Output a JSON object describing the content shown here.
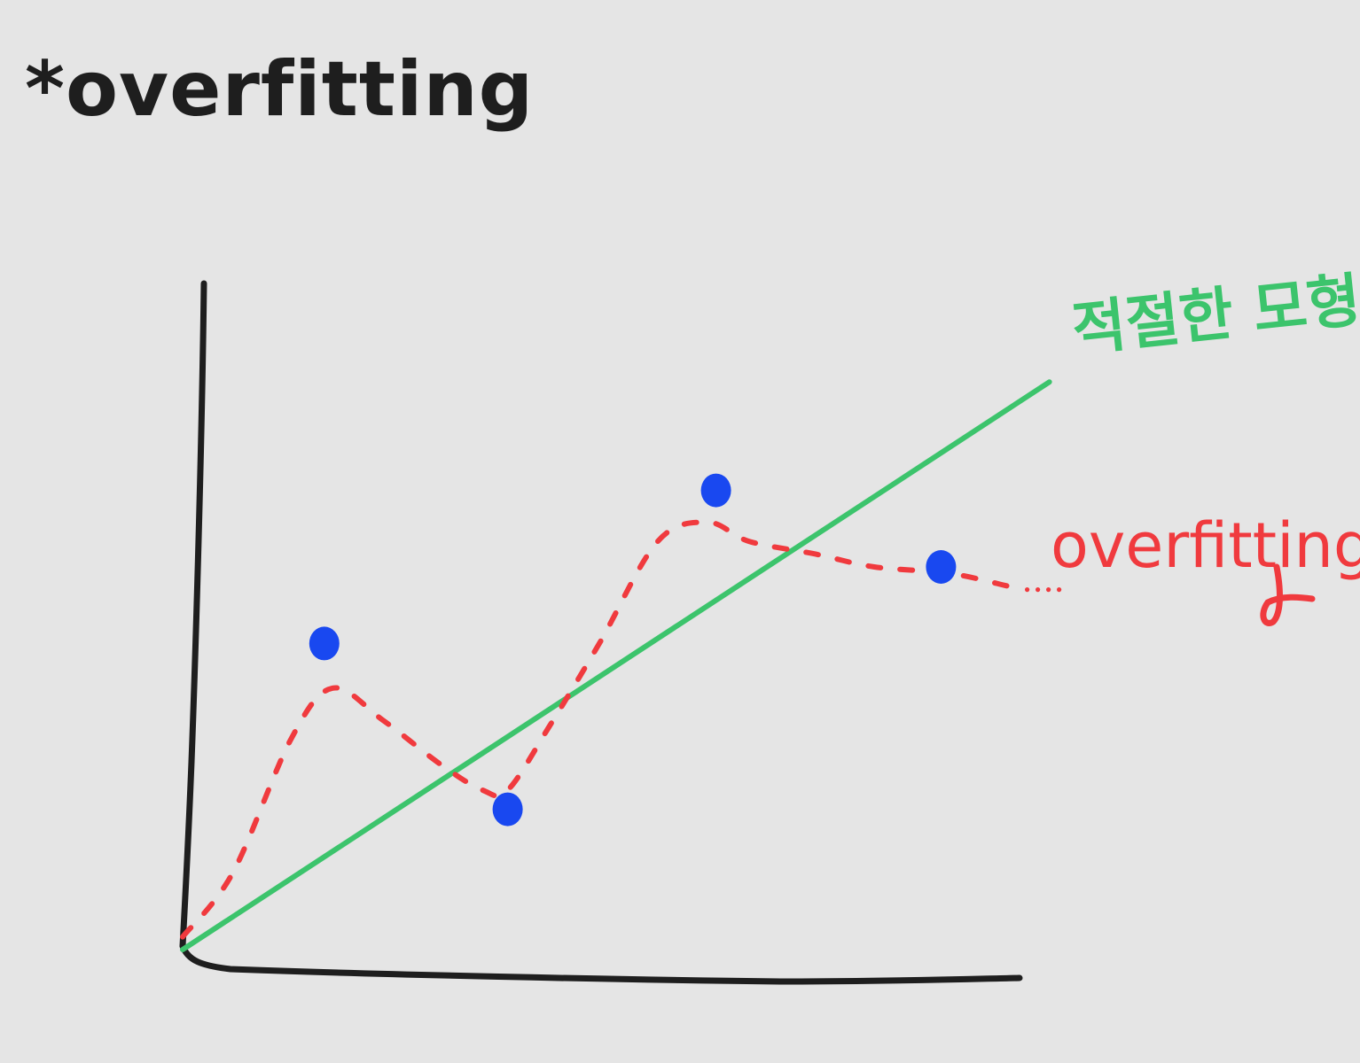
{
  "title": "*overfitting",
  "colors": {
    "background": "#e5e5e5",
    "axes": "#1e1e1e",
    "title": "#1e1e1e",
    "appropriate_model": "#3cc46c",
    "overfitting_curve": "#f03a3e",
    "data_points": "#1948f0"
  },
  "labels": {
    "appropriate_model": "적절한 모형",
    "overfitting": "overfitting"
  },
  "chart_data": {
    "type": "scatter",
    "xlim": [
      0,
      10
    ],
    "ylim": [
      0,
      10
    ],
    "points": [
      {
        "x": 1.7,
        "y": 4.8
      },
      {
        "x": 3.9,
        "y": 2.2
      },
      {
        "x": 6.4,
        "y": 7.2
      },
      {
        "x": 9.1,
        "y": 6.0
      }
    ],
    "appropriate_model_line": [
      {
        "x": 0,
        "y": 0
      },
      {
        "x": 10.4,
        "y": 8.9
      }
    ],
    "overfitting_curve": [
      {
        "x": 0.0,
        "y": 0.2
      },
      {
        "x": 0.6,
        "y": 1.2
      },
      {
        "x": 1.3,
        "y": 3.3
      },
      {
        "x": 1.8,
        "y": 4.1
      },
      {
        "x": 2.4,
        "y": 3.6
      },
      {
        "x": 3.1,
        "y": 2.9
      },
      {
        "x": 3.6,
        "y": 2.5
      },
      {
        "x": 3.9,
        "y": 2.5
      },
      {
        "x": 4.4,
        "y": 3.5
      },
      {
        "x": 5.0,
        "y": 4.8
      },
      {
        "x": 5.7,
        "y": 6.4
      },
      {
        "x": 6.3,
        "y": 6.7
      },
      {
        "x": 6.8,
        "y": 6.4
      },
      {
        "x": 7.6,
        "y": 6.2
      },
      {
        "x": 8.3,
        "y": 6.0
      },
      {
        "x": 9.2,
        "y": 5.9
      },
      {
        "x": 9.9,
        "y": 5.7
      }
    ]
  }
}
